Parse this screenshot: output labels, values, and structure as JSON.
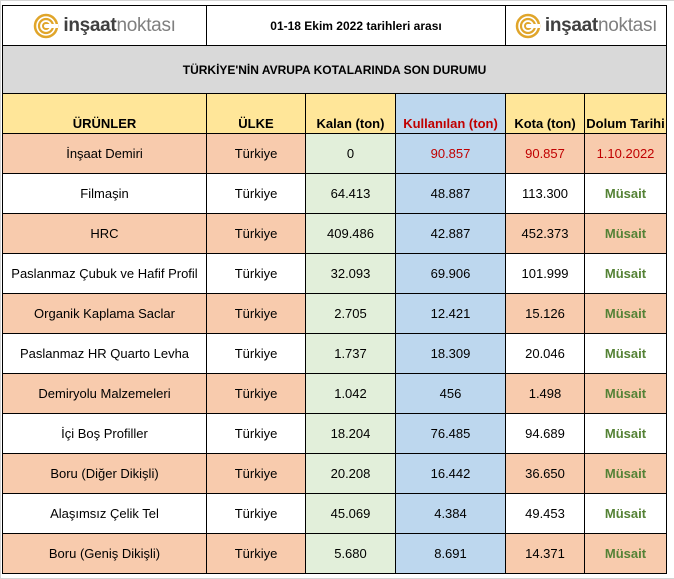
{
  "header": {
    "logo_left": {
      "brand_bold": "inşaat",
      "brand_light": "noktası"
    },
    "logo_right": {
      "brand_bold": "inşaat",
      "brand_light": "noktası"
    },
    "date_range": "01-18 Ekim 2022 tarihleri arası",
    "title": "TÜRKİYE'NİN AVRUPA KOTALARINDA SON DURUMU"
  },
  "columns": {
    "product": "ÜRÜNLER",
    "country": "ÜLKE",
    "remaining": "Kalan (ton)",
    "used": "Kullanılan (ton)",
    "quota": "Kota (ton)",
    "fill_date": "Dolum Tarihi"
  },
  "rows": [
    {
      "product": "İnşaat Demiri",
      "country": "Türkiye",
      "remaining": "0",
      "used": "90.857",
      "quota": "90.857",
      "status": "1.10.2022"
    },
    {
      "product": "Filmaşin",
      "country": "Türkiye",
      "remaining": "64.413",
      "used": "48.887",
      "quota": "113.300",
      "status": "Müsait"
    },
    {
      "product": "HRC",
      "country": "Türkiye",
      "remaining": "409.486",
      "used": "42.887",
      "quota": "452.373",
      "status": "Müsait"
    },
    {
      "product": "Paslanmaz Çubuk ve Hafif Profil",
      "country": "Türkiye",
      "remaining": "32.093",
      "used": "69.906",
      "quota": "101.999",
      "status": "Müsait"
    },
    {
      "product": "Organik Kaplama Saclar",
      "country": "Türkiye",
      "remaining": "2.705",
      "used": "12.421",
      "quota": "15.126",
      "status": "Müsait"
    },
    {
      "product": "Paslanmaz HR Quarto Levha",
      "country": "Türkiye",
      "remaining": "1.737",
      "used": "18.309",
      "quota": "20.046",
      "status": "Müsait"
    },
    {
      "product": "Demiryolu Malzemeleri",
      "country": "Türkiye",
      "remaining": "1.042",
      "used": "456",
      "quota": "1.498",
      "status": "Müsait"
    },
    {
      "product": "İçi Boş Profiller",
      "country": "Türkiye",
      "remaining": "18.204",
      "used": "76.485",
      "quota": "94.689",
      "status": "Müsait"
    },
    {
      "product": "Boru (Diğer Dikişli)",
      "country": "Türkiye",
      "remaining": "20.208",
      "used": "16.442",
      "quota": "36.650",
      "status": "Müsait"
    },
    {
      "product": "Alaşımsız Çelik Tel",
      "country": "Türkiye",
      "remaining": "45.069",
      "used": "4.384",
      "quota": "49.453",
      "status": "Müsait"
    },
    {
      "product": "Boru (Geniş Dikişli)",
      "country": "Türkiye",
      "remaining": "5.680",
      "used": "8.691",
      "quota": "14.371",
      "status": "Müsait"
    }
  ],
  "colors": {
    "peach": "#f8cbad",
    "green": "#e2efda",
    "blue": "#bdd7ee",
    "yellow": "#ffe699",
    "gray": "#d9d9d9",
    "red": "#c00000",
    "ok_green": "#548235",
    "logo_gold": "#e0a52a"
  }
}
